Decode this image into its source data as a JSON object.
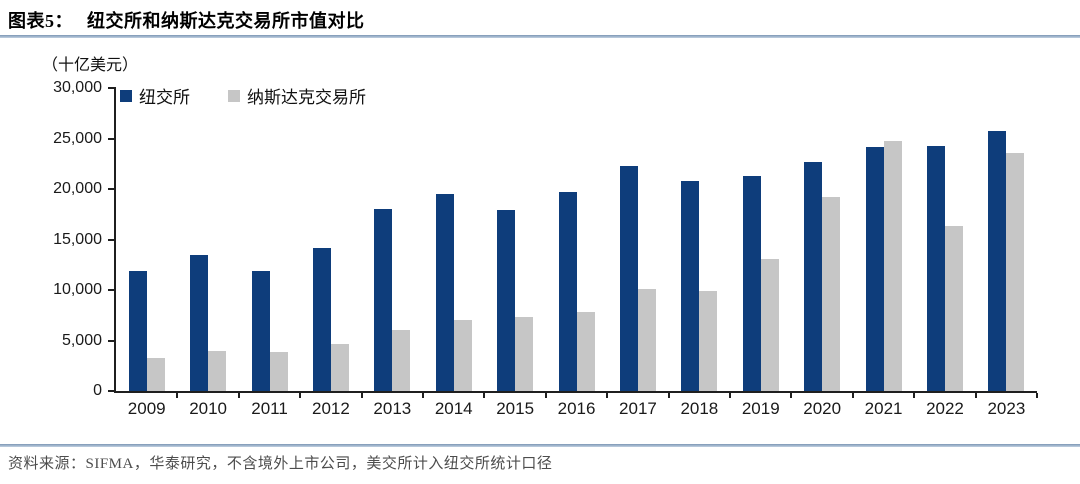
{
  "header": {
    "fig_label": "图表5：",
    "title": "纽交所和纳斯达克交易所市值对比"
  },
  "unit_label": "（十亿美元）",
  "legend": {
    "items": [
      {
        "key": "nyse",
        "label": "纽交所",
        "color": "#0e3d7b"
      },
      {
        "key": "nasdaq",
        "label": "纳斯达克交易所",
        "color": "#c6c6c6"
      }
    ]
  },
  "footer": {
    "source_text": "资料来源：SIFMA，华泰研究，不含境外上市公司，美交所计入纽交所统计口径"
  },
  "chart_data": {
    "type": "bar",
    "title": "纽交所和纳斯达克交易所市值对比",
    "unit": "十亿美元",
    "xlabel": "",
    "ylabel": "（十亿美元）",
    "ylim": [
      0,
      30000
    ],
    "y_tick_step": 5000,
    "y_ticks": [
      0,
      5000,
      10000,
      15000,
      20000,
      25000,
      30000
    ],
    "grid": false,
    "legend_position": "top-left-inside",
    "categories": [
      "2009",
      "2010",
      "2011",
      "2012",
      "2013",
      "2014",
      "2015",
      "2016",
      "2017",
      "2018",
      "2019",
      "2020",
      "2021",
      "2022",
      "2023"
    ],
    "series": [
      {
        "name": "纽交所",
        "key": "nyse",
        "color": "#0e3d7b",
        "values": [
          11800,
          13400,
          11800,
          14100,
          17950,
          19400,
          17800,
          19600,
          22100,
          20700,
          21100,
          22500,
          24000,
          24100,
          25600
        ]
      },
      {
        "name": "纳斯达克交易所",
        "key": "nasdaq",
        "color": "#c6c6c6",
        "values": [
          3200,
          3900,
          3850,
          4600,
          6000,
          7000,
          7300,
          7800,
          10000,
          9800,
          13000,
          19100,
          24600,
          16200,
          23400
        ]
      }
    ]
  }
}
